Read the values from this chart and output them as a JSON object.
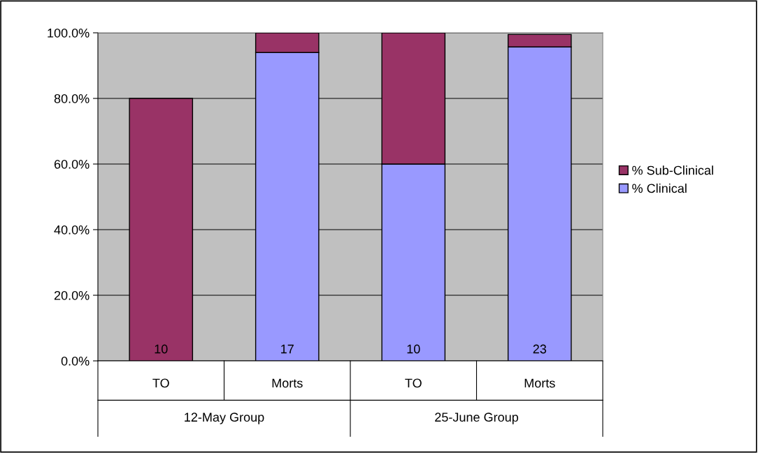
{
  "chart_data": {
    "type": "bar",
    "stacked": true,
    "categories": [
      "TO",
      "Morts",
      "TO",
      "Morts"
    ],
    "series": [
      {
        "name": "% Clinical",
        "color": "#9999ff",
        "values": [
          0,
          94,
          60,
          95.7
        ]
      },
      {
        "name": "% Sub-Clinical",
        "color": "#993366",
        "values": [
          80,
          6,
          40,
          3.8
        ]
      }
    ],
    "ylim": [
      0,
      100
    ],
    "yticks": [
      {
        "value": 0,
        "label": "0.0%"
      },
      {
        "value": 20,
        "label": "20.0%"
      },
      {
        "value": 40,
        "label": "40.0%"
      },
      {
        "value": 60,
        "label": "60.0%"
      },
      {
        "value": 80,
        "label": "80.0%"
      },
      {
        "value": 100,
        "label": "100.0%"
      }
    ],
    "grid": "y",
    "legend": "right",
    "annotations": [
      "10",
      "17",
      "10",
      "23",
      "12-May Group",
      "25-June Group"
    ]
  }
}
